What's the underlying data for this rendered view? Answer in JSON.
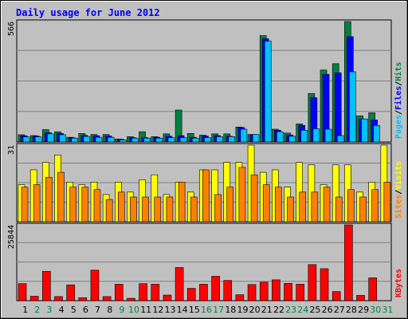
{
  "chart_data": {
    "type": "bar",
    "title": "Daily usage for June 2012",
    "categories": [
      "1",
      "2",
      "3",
      "4",
      "5",
      "6",
      "7",
      "8",
      "9",
      "10",
      "11",
      "12",
      "13",
      "14",
      "15",
      "16",
      "17",
      "18",
      "19",
      "20",
      "21",
      "22",
      "23",
      "24",
      "25",
      "26",
      "27",
      "28",
      "29",
      "30",
      "31"
    ],
    "weekend_days": [
      "2",
      "3",
      "9",
      "10",
      "16",
      "17",
      "23",
      "24",
      "30",
      "31"
    ],
    "panels": [
      {
        "id": "pages_files_hits",
        "ymax_label": "566",
        "ymax": 566,
        "legend": [
          "Pages",
          "/",
          "Files",
          "/",
          "Hits"
        ],
        "series": [
          {
            "name": "Hits",
            "color": "#008040",
            "values": [
              34,
              30,
              58,
              48,
              22,
              40,
              35,
              35,
              14,
              25,
              48,
              25,
              38,
              150,
              40,
              32,
              38,
              38,
              70,
              35,
              500,
              60,
              42,
              85,
              228,
              338,
              368,
              566,
              123,
              137,
              0
            ]
          },
          {
            "name": "Files",
            "color": "#0000ff",
            "values": [
              29,
              28,
              44,
              40,
              20,
              31,
              29,
              28,
              13,
              20,
              21,
              22,
              27,
              30,
              22,
              28,
              30,
              27,
              68,
              35,
              485,
              55,
              33,
              78,
              208,
              318,
              325,
              495,
              108,
              103,
              0
            ]
          },
          {
            "name": "Pages",
            "color": "#00c0ff",
            "values": [
              24,
              24,
              38,
              34,
              18,
              26,
              22,
              22,
              10,
              18,
              18,
              18,
              20,
              20,
              18,
              20,
              25,
              25,
              60,
              35,
              474,
              48,
              27,
              55,
              62,
              60,
              30,
              330,
              108,
              77,
              0
            ]
          }
        ]
      },
      {
        "id": "visits_sites",
        "ymax_label": "31",
        "ymax": 31,
        "legend": [
          "Sites",
          "/",
          "Visits"
        ],
        "series": [
          {
            "name": "Visits",
            "color": "#ffff00",
            "values": [
              15,
              21,
              24,
              27,
              16,
              15,
              16,
              11,
              16,
              12,
              17,
              19,
              11,
              16,
              12,
              21,
              21,
              24,
              24,
              31,
              20,
              21,
              14,
              24,
              23,
              15,
              23,
              23,
              12,
              16,
              31
            ]
          },
          {
            "name": "Sites",
            "color": "#ff8000",
            "values": [
              14,
              15,
              18,
              20,
              14,
              14,
              13,
              9,
              12,
              10,
              10,
              10,
              10,
              16,
              10,
              21,
              11,
              14,
              22,
              19,
              15,
              14,
              10,
              12,
              12,
              14,
              10,
              13,
              10,
              13,
              16
            ]
          }
        ]
      },
      {
        "id": "kbytes",
        "ymax_label": "25844",
        "ymax": 25844,
        "legend": [
          "KBytes"
        ],
        "series": [
          {
            "name": "KBytes",
            "color": "#ff0000",
            "values": [
              5800,
              1500,
              10000,
              1400,
              5400,
              1000,
              10400,
              1400,
              5600,
              800,
              5800,
              5600,
              1900,
              11300,
              4200,
              5600,
              8300,
              6900,
              2000,
              5500,
              6300,
              7100,
              5900,
              5600,
              12300,
              10900,
              3100,
              25844,
              1800,
              7800,
              0
            ]
          }
        ]
      }
    ],
    "colors": {
      "panel_bg": "#c0c0c0",
      "grid": "#808080",
      "title": "#0000ff",
      "weekday_label": "#000000",
      "weekend_label": "#00804d",
      "legend_sep": "#000000"
    }
  }
}
